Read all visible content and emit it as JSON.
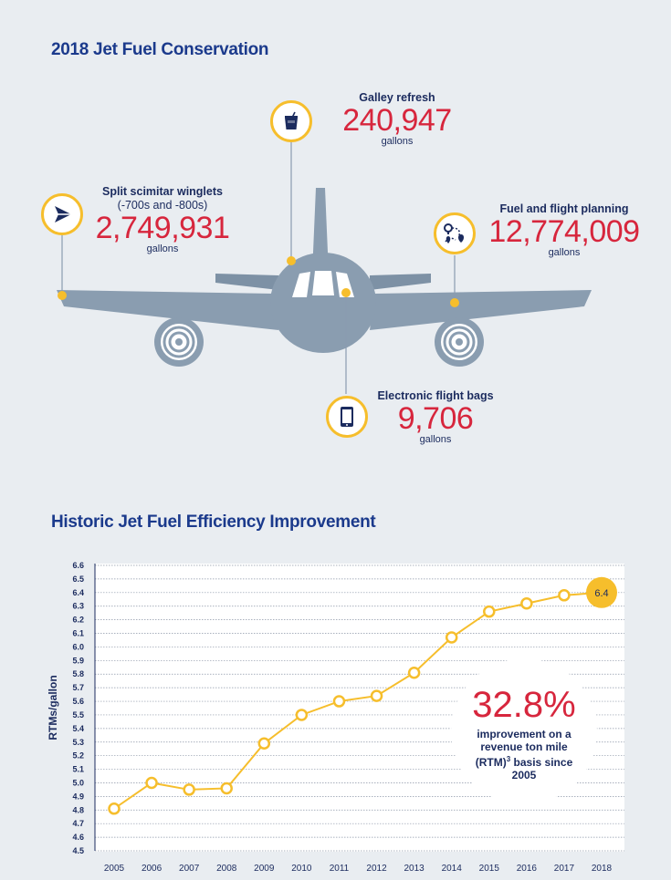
{
  "section1": {
    "title": "2018 Jet Fuel Conservation",
    "callouts": [
      {
        "label": "Galley refresh",
        "value": "240,947",
        "unit": "gallons",
        "icon": "cup-icon"
      },
      {
        "label": "Split scimitar winglets",
        "sub": "(-700s and -800s)",
        "value": "2,749,931",
        "unit": "gallons",
        "icon": "airplane-tail-icon"
      },
      {
        "label": "Fuel and flight planning",
        "value": "12,774,009",
        "unit": "gallons",
        "icon": "route-icon"
      },
      {
        "label": "Electronic flight bags",
        "value": "9,706",
        "unit": "gallons",
        "icon": "tablet-icon"
      }
    ]
  },
  "section2": {
    "title": "Historic Jet Fuel Efficiency Improvement",
    "badge": {
      "value": "32.8%",
      "text_main": "improvement on a revenue ton mile (RTM)",
      "superscript": "3",
      "text_tail": "basis since 2005"
    }
  },
  "colors": {
    "title": "#1b3a8c",
    "value": "#d7263d",
    "accent": "#f6be2c",
    "plane": "#8a9db0",
    "background": "#e9edf1"
  },
  "chart_data": {
    "type": "line",
    "title": "Historic Jet Fuel Efficiency Improvement",
    "xlabel": "",
    "ylabel": "RTMs/gallon",
    "x": [
      "2005",
      "2006",
      "2007",
      "2008",
      "2009",
      "2010",
      "2011",
      "2012",
      "2013",
      "2014",
      "2015",
      "2016",
      "2017",
      "2018"
    ],
    "values": [
      4.81,
      5.0,
      4.95,
      4.96,
      5.29,
      5.5,
      5.6,
      5.64,
      5.81,
      6.07,
      6.26,
      6.32,
      6.38,
      6.4
    ],
    "ylim": [
      4.5,
      6.6
    ],
    "yticks": [
      "4.5",
      "4.6",
      "4.7",
      "4.8",
      "4.9",
      "5.0",
      "5.1",
      "5.2",
      "5.3",
      "5.4",
      "5.5",
      "5.6",
      "5.7",
      "5.8",
      "5.9",
      "6.0",
      "6.1",
      "6.2",
      "6.3",
      "6.4",
      "6.5",
      "6.6"
    ],
    "data_labels": [
      {
        "x": "2018",
        "label": "6.4"
      }
    ],
    "grid": true
  }
}
